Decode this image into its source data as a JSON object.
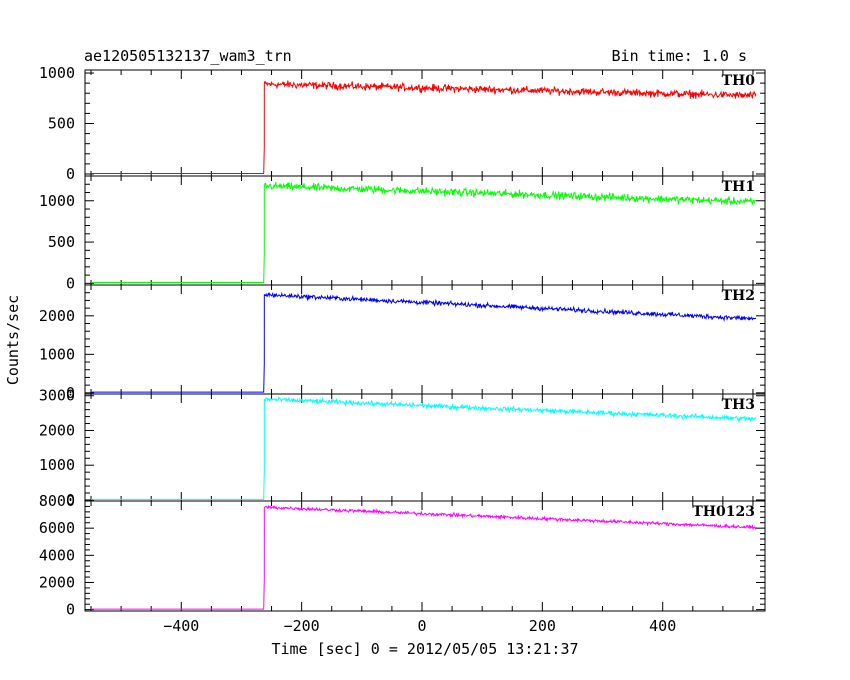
{
  "chart_data": {
    "type": "line",
    "title": "ae120505132137_wam3_trn",
    "bin_time": "Bin time: 1.0 s",
    "xlabel": "Time [sec] 0 = 2012/05/05 13:21:37",
    "ylabel": "Counts/sec",
    "xlim": [
      -560,
      570
    ],
    "x_ticks": [
      -400,
      -200,
      0,
      200,
      400
    ],
    "x_tick_labels": [
      "−400",
      "−200",
      "0",
      "200",
      "400"
    ],
    "grid": false,
    "panels": [
      {
        "name": "TH0",
        "color": "#ff0000",
        "ylim": [
          -20,
          1030
        ],
        "y_ticks": [
          0,
          500,
          1000
        ],
        "y_tick_labels": [
          "0",
          "500",
          "1000"
        ],
        "baseline": 5,
        "x_start": -550,
        "x_jump": -262,
        "x_end": 555,
        "level_start": 890,
        "level_end": 775,
        "noise": 28
      },
      {
        "name": "TH1",
        "color": "#00ff00",
        "ylim": [
          -20,
          1300
        ],
        "y_ticks": [
          0,
          500,
          1000
        ],
        "y_tick_labels": [
          "0",
          "500",
          "1000"
        ],
        "baseline": 10,
        "x_start": -550,
        "x_jump": -262,
        "x_end": 555,
        "level_start": 1180,
        "level_end": 985,
        "noise": 35
      },
      {
        "name": "TH2",
        "color": "#0000ff",
        "ylim": [
          -30,
          2800
        ],
        "y_ticks": [
          0,
          1000,
          2000
        ],
        "y_tick_labels": [
          "0",
          "1000",
          "2000"
        ],
        "baseline": 20,
        "x_start": -550,
        "x_jump": -262,
        "x_end": 555,
        "level_start": 2550,
        "level_end": 1920,
        "noise": 45
      },
      {
        "name": "TH3",
        "color": "#00ffff",
        "ylim": [
          -30,
          3050
        ],
        "y_ticks": [
          0,
          1000,
          2000,
          3000
        ],
        "y_tick_labels": [
          "0",
          "1000",
          "2000",
          "3000"
        ],
        "baseline": 15,
        "x_start": -550,
        "x_jump": -262,
        "x_end": 555,
        "level_start": 2900,
        "level_end": 2330,
        "noise": 50
      },
      {
        "name": "TH0123",
        "color": "#ff00ff",
        "ylim": [
          -100,
          8000
        ],
        "y_ticks": [
          0,
          2000,
          4000,
          6000,
          8000
        ],
        "y_tick_labels": [
          "0",
          "2000",
          "4000",
          "6000",
          "8000"
        ],
        "baseline": 40,
        "x_start": -550,
        "x_jump": -262,
        "x_end": 555,
        "level_start": 7550,
        "level_end": 6050,
        "noise": 90
      }
    ]
  }
}
